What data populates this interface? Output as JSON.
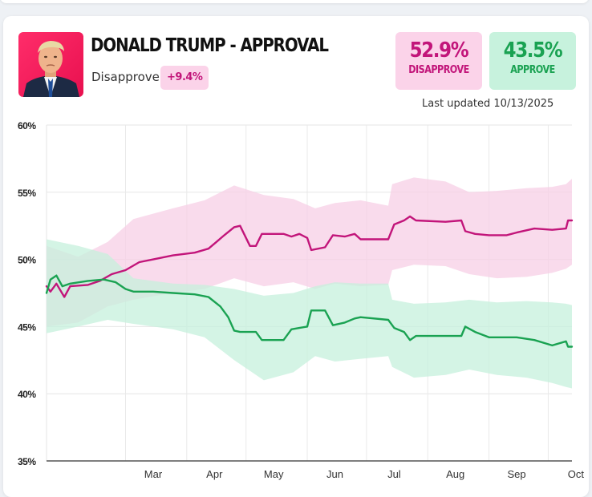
{
  "header": {
    "title": "DONALD TRUMP - APPROVAL",
    "net_label": "Disapprove",
    "net_value": "+9.4%",
    "photo_icon": "portrait-photo"
  },
  "stats": {
    "disapprove_value": "52.9%",
    "disapprove_label": "DISAPPROVE",
    "approve_value": "43.5%",
    "approve_label": "APPROVE"
  },
  "last_updated": "Last updated 10/13/2025",
  "colors": {
    "disapprove": "#c2157a",
    "disapprove_band": "#f7cfe5",
    "approve": "#1aa252",
    "approve_band": "#c5f0dc"
  },
  "chart_data": {
    "type": "line",
    "title": "DONALD TRUMP - APPROVAL",
    "x_ticks": [
      "Mar",
      "Apr",
      "May",
      "Jun",
      "Jul",
      "Aug",
      "Sep",
      "Oct"
    ],
    "y_ticks": [
      "60%",
      "55%",
      "50%",
      "45%",
      "40%",
      "35%"
    ],
    "ylim": [
      35,
      60
    ],
    "x_range": [
      "2025-01-20",
      "2025-10-13"
    ],
    "grid": true,
    "series": [
      {
        "name": "Disapprove",
        "color": "#c2157a",
        "points": [
          [
            "2025-01-20",
            48.0
          ],
          [
            "2025-01-22",
            47.6
          ],
          [
            "2025-01-25",
            48.2
          ],
          [
            "2025-01-29",
            47.2
          ],
          [
            "2025-02-01",
            48.0
          ],
          [
            "2025-02-10",
            48.1
          ],
          [
            "2025-02-16",
            48.4
          ],
          [
            "2025-02-22",
            48.9
          ],
          [
            "2025-03-01",
            49.2
          ],
          [
            "2025-03-08",
            49.8
          ],
          [
            "2025-03-15",
            50.0
          ],
          [
            "2025-03-25",
            50.3
          ],
          [
            "2025-04-05",
            50.5
          ],
          [
            "2025-04-12",
            50.8
          ],
          [
            "2025-04-16",
            51.3
          ],
          [
            "2025-04-20",
            51.8
          ],
          [
            "2025-04-25",
            52.4
          ],
          [
            "2025-04-28",
            52.5
          ],
          [
            "2025-05-01",
            51.6
          ],
          [
            "2025-05-03",
            51.0
          ],
          [
            "2025-05-06",
            51.0
          ],
          [
            "2025-05-09",
            51.9
          ],
          [
            "2025-05-20",
            51.9
          ],
          [
            "2025-05-24",
            51.7
          ],
          [
            "2025-05-28",
            51.9
          ],
          [
            "2025-06-01",
            51.6
          ],
          [
            "2025-06-03",
            50.7
          ],
          [
            "2025-06-10",
            50.9
          ],
          [
            "2025-06-14",
            51.8
          ],
          [
            "2025-06-20",
            51.7
          ],
          [
            "2025-06-25",
            51.9
          ],
          [
            "2025-06-28",
            51.5
          ],
          [
            "2025-07-12",
            51.5
          ],
          [
            "2025-07-15",
            52.6
          ],
          [
            "2025-07-20",
            52.9
          ],
          [
            "2025-07-23",
            53.2
          ],
          [
            "2025-07-26",
            52.9
          ],
          [
            "2025-08-10",
            52.8
          ],
          [
            "2025-08-18",
            52.9
          ],
          [
            "2025-08-20",
            52.1
          ],
          [
            "2025-08-25",
            51.9
          ],
          [
            "2025-09-01",
            51.8
          ],
          [
            "2025-09-10",
            51.8
          ],
          [
            "2025-09-15",
            52.0
          ],
          [
            "2025-09-24",
            52.3
          ],
          [
            "2025-10-03",
            52.2
          ],
          [
            "2025-10-10",
            52.3
          ],
          [
            "2025-10-11",
            52.9
          ],
          [
            "2025-10-13",
            52.9
          ]
        ],
        "band_upper": [
          [
            "2025-01-20",
            51.0
          ],
          [
            "2025-02-05",
            50.2
          ],
          [
            "2025-02-20",
            51.3
          ],
          [
            "2025-03-05",
            53.0
          ],
          [
            "2025-03-25",
            53.8
          ],
          [
            "2025-04-10",
            54.4
          ],
          [
            "2025-04-25",
            55.5
          ],
          [
            "2025-05-10",
            54.8
          ],
          [
            "2025-05-25",
            54.5
          ],
          [
            "2025-06-05",
            53.8
          ],
          [
            "2025-06-15",
            54.2
          ],
          [
            "2025-06-28",
            54.4
          ],
          [
            "2025-07-12",
            54.0
          ],
          [
            "2025-07-14",
            55.6
          ],
          [
            "2025-07-25",
            56.1
          ],
          [
            "2025-08-10",
            55.8
          ],
          [
            "2025-08-22",
            55.0
          ],
          [
            "2025-09-05",
            55.1
          ],
          [
            "2025-09-20",
            55.3
          ],
          [
            "2025-10-03",
            55.4
          ],
          [
            "2025-10-10",
            55.6
          ],
          [
            "2025-10-13",
            56.0
          ]
        ],
        "band_lower": [
          [
            "2025-01-20",
            45.0
          ],
          [
            "2025-02-05",
            45.3
          ],
          [
            "2025-02-20",
            46.5
          ],
          [
            "2025-03-05",
            47.0
          ],
          [
            "2025-03-25",
            47.5
          ],
          [
            "2025-04-10",
            47.8
          ],
          [
            "2025-04-25",
            48.6
          ],
          [
            "2025-05-10",
            48.0
          ],
          [
            "2025-05-25",
            48.3
          ],
          [
            "2025-06-05",
            47.8
          ],
          [
            "2025-06-15",
            48.2
          ],
          [
            "2025-06-28",
            48.0
          ],
          [
            "2025-07-12",
            48.1
          ],
          [
            "2025-07-14",
            49.2
          ],
          [
            "2025-07-25",
            49.6
          ],
          [
            "2025-08-10",
            49.5
          ],
          [
            "2025-08-22",
            48.9
          ],
          [
            "2025-09-05",
            48.6
          ],
          [
            "2025-09-20",
            48.7
          ],
          [
            "2025-10-03",
            49.0
          ],
          [
            "2025-10-10",
            49.3
          ],
          [
            "2025-10-13",
            49.6
          ]
        ]
      },
      {
        "name": "Approve",
        "color": "#1aa252",
        "points": [
          [
            "2025-01-20",
            47.5
          ],
          [
            "2025-01-22",
            48.5
          ],
          [
            "2025-01-25",
            48.8
          ],
          [
            "2025-01-28",
            48.0
          ],
          [
            "2025-02-01",
            48.2
          ],
          [
            "2025-02-10",
            48.4
          ],
          [
            "2025-02-18",
            48.5
          ],
          [
            "2025-02-24",
            48.3
          ],
          [
            "2025-03-01",
            47.8
          ],
          [
            "2025-03-05",
            47.6
          ],
          [
            "2025-03-15",
            47.6
          ],
          [
            "2025-03-25",
            47.5
          ],
          [
            "2025-04-05",
            47.4
          ],
          [
            "2025-04-12",
            47.2
          ],
          [
            "2025-04-18",
            46.5
          ],
          [
            "2025-04-22",
            45.7
          ],
          [
            "2025-04-25",
            44.7
          ],
          [
            "2025-04-28",
            44.6
          ],
          [
            "2025-05-06",
            44.6
          ],
          [
            "2025-05-09",
            44.0
          ],
          [
            "2025-05-20",
            44.0
          ],
          [
            "2025-05-24",
            44.8
          ],
          [
            "2025-05-28",
            44.9
          ],
          [
            "2025-06-01",
            45.0
          ],
          [
            "2025-06-03",
            46.2
          ],
          [
            "2025-06-10",
            46.2
          ],
          [
            "2025-06-14",
            45.1
          ],
          [
            "2025-06-20",
            45.3
          ],
          [
            "2025-06-25",
            45.6
          ],
          [
            "2025-06-28",
            45.7
          ],
          [
            "2025-07-12",
            45.5
          ],
          [
            "2025-07-15",
            44.9
          ],
          [
            "2025-07-20",
            44.6
          ],
          [
            "2025-07-23",
            44.0
          ],
          [
            "2025-07-26",
            44.3
          ],
          [
            "2025-08-10",
            44.3
          ],
          [
            "2025-08-18",
            44.3
          ],
          [
            "2025-08-20",
            45.0
          ],
          [
            "2025-08-25",
            44.6
          ],
          [
            "2025-09-01",
            44.2
          ],
          [
            "2025-09-10",
            44.2
          ],
          [
            "2025-09-15",
            44.2
          ],
          [
            "2025-09-24",
            44.0
          ],
          [
            "2025-10-03",
            43.6
          ],
          [
            "2025-10-10",
            43.9
          ],
          [
            "2025-10-11",
            43.5
          ],
          [
            "2025-10-13",
            43.5
          ]
        ],
        "band_upper": [
          [
            "2025-01-20",
            51.5
          ],
          [
            "2025-02-05",
            51.0
          ],
          [
            "2025-02-20",
            50.4
          ],
          [
            "2025-03-05",
            48.6
          ],
          [
            "2025-03-25",
            48.2
          ],
          [
            "2025-04-10",
            48.1
          ],
          [
            "2025-04-25",
            47.8
          ],
          [
            "2025-05-10",
            47.3
          ],
          [
            "2025-05-25",
            47.5
          ],
          [
            "2025-06-05",
            48.0
          ],
          [
            "2025-06-15",
            48.3
          ],
          [
            "2025-06-28",
            48.2
          ],
          [
            "2025-07-12",
            48.2
          ],
          [
            "2025-07-14",
            47.0
          ],
          [
            "2025-07-25",
            46.7
          ],
          [
            "2025-08-10",
            46.8
          ],
          [
            "2025-08-22",
            47.0
          ],
          [
            "2025-09-05",
            46.8
          ],
          [
            "2025-09-20",
            46.9
          ],
          [
            "2025-10-03",
            46.8
          ],
          [
            "2025-10-10",
            46.7
          ],
          [
            "2025-10-13",
            46.6
          ]
        ],
        "band_lower": [
          [
            "2025-01-20",
            44.5
          ],
          [
            "2025-02-05",
            45.0
          ],
          [
            "2025-02-20",
            45.5
          ],
          [
            "2025-03-05",
            45.2
          ],
          [
            "2025-03-25",
            44.8
          ],
          [
            "2025-04-10",
            44.2
          ],
          [
            "2025-04-25",
            42.5
          ],
          [
            "2025-05-10",
            41.0
          ],
          [
            "2025-05-25",
            41.6
          ],
          [
            "2025-06-05",
            42.8
          ],
          [
            "2025-06-15",
            42.4
          ],
          [
            "2025-06-28",
            42.6
          ],
          [
            "2025-07-12",
            42.8
          ],
          [
            "2025-07-14",
            42.0
          ],
          [
            "2025-07-25",
            41.2
          ],
          [
            "2025-08-10",
            41.4
          ],
          [
            "2025-08-22",
            41.8
          ],
          [
            "2025-09-05",
            41.4
          ],
          [
            "2025-09-20",
            41.2
          ],
          [
            "2025-10-03",
            40.8
          ],
          [
            "2025-10-10",
            40.5
          ],
          [
            "2025-10-13",
            40.4
          ]
        ]
      }
    ]
  }
}
